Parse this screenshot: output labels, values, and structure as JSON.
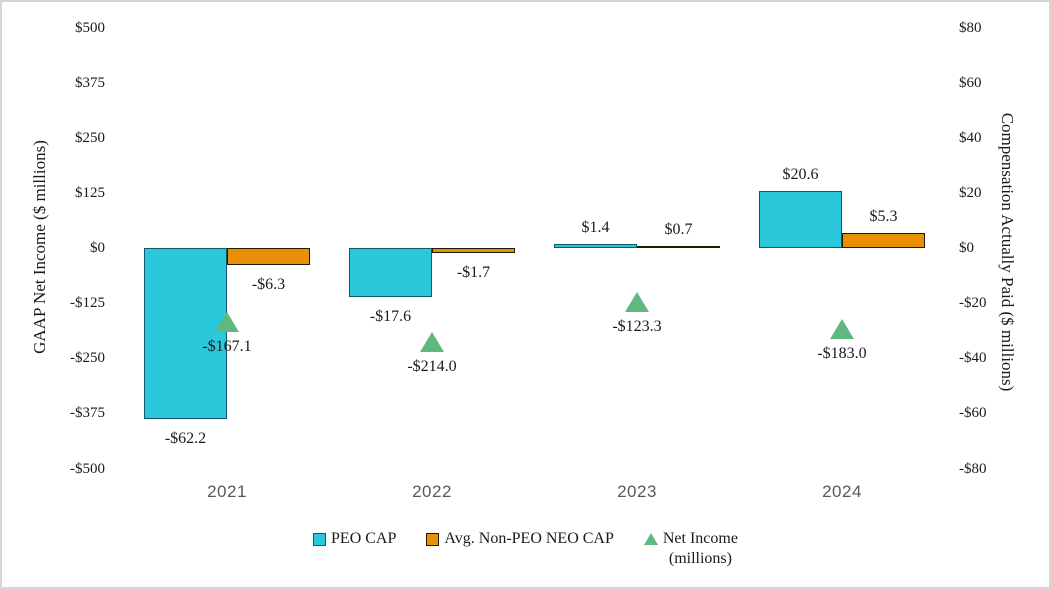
{
  "chart_data": {
    "type": "bar",
    "subtype": "combo-clustered-bar-with-scatter-markers",
    "categories": [
      "2021",
      "2022",
      "2023",
      "2024"
    ],
    "series": [
      {
        "name": "PEO CAP",
        "chart": "bar",
        "axis": "right",
        "values": [
          -62.2,
          -17.6,
          1.4,
          20.6
        ],
        "data_labels": [
          "-$62.2",
          "-$17.6",
          "$1.4",
          "$20.6"
        ],
        "fill": "#2BC7DA",
        "border": "#15566B",
        "legend_marker": "square"
      },
      {
        "name": "Avg. Non-PEO NEO CAP",
        "chart": "bar",
        "axis": "right",
        "values": [
          -6.3,
          -1.7,
          0.7,
          5.3
        ],
        "data_labels": [
          "-$6.3",
          "-$1.7",
          "$0.7",
          "$5.3"
        ],
        "fill": "#E98F06",
        "border": "#201A06",
        "legend_marker": "square"
      },
      {
        "name": "Net Income (millions)",
        "legend_label": "Net Income\n(millions)",
        "chart": "scatter",
        "marker": "triangle",
        "axis": "left",
        "values": [
          -167.1,
          -214.0,
          -123.3,
          -183.0
        ],
        "data_labels": [
          "-$167.1",
          "-$214.0",
          "-$123.3",
          "-$183.0"
        ],
        "fill": "#5FB97F",
        "legend_marker": "triangle"
      }
    ],
    "left_axis": {
      "title": "GAAP Net Income ($ millions)",
      "range": [
        -500,
        500
      ],
      "ticks": [
        {
          "label": "$500",
          "value": 500
        },
        {
          "label": "$375",
          "value": 375
        },
        {
          "label": "$250",
          "value": 250
        },
        {
          "label": "$125",
          "value": 125
        },
        {
          "label": "$0",
          "value": 0
        },
        {
          "label": "-$125",
          "value": -125
        },
        {
          "label": "-$250",
          "value": -250
        },
        {
          "label": "-$375",
          "value": -375
        },
        {
          "label": "-$500",
          "value": -500
        }
      ]
    },
    "right_axis": {
      "title": "Compensation Actually Paid ($ millions)",
      "range": [
        -80,
        80
      ],
      "ticks": [
        {
          "label": "$80",
          "value": 80
        },
        {
          "label": "$60",
          "value": 60
        },
        {
          "label": "$40",
          "value": 40
        },
        {
          "label": "$20",
          "value": 20
        },
        {
          "label": "$0",
          "value": 0
        },
        {
          "label": "-$20",
          "value": -20
        },
        {
          "label": "-$40",
          "value": -40
        },
        {
          "label": "-$60",
          "value": -60
        },
        {
          "label": "-$80",
          "value": -80
        }
      ]
    },
    "grid": "off",
    "legend_position": "bottom",
    "colors": {
      "peo_cap_fill": "#2BC7DA",
      "peo_cap_border": "#15566B",
      "non_peo_fill": "#E98F06",
      "non_peo_border": "#201A06",
      "net_income_marker": "#5FB97F",
      "category_label": "#595959",
      "text": "#1A1A1A",
      "canvas_border": "#D8D5D5"
    }
  }
}
